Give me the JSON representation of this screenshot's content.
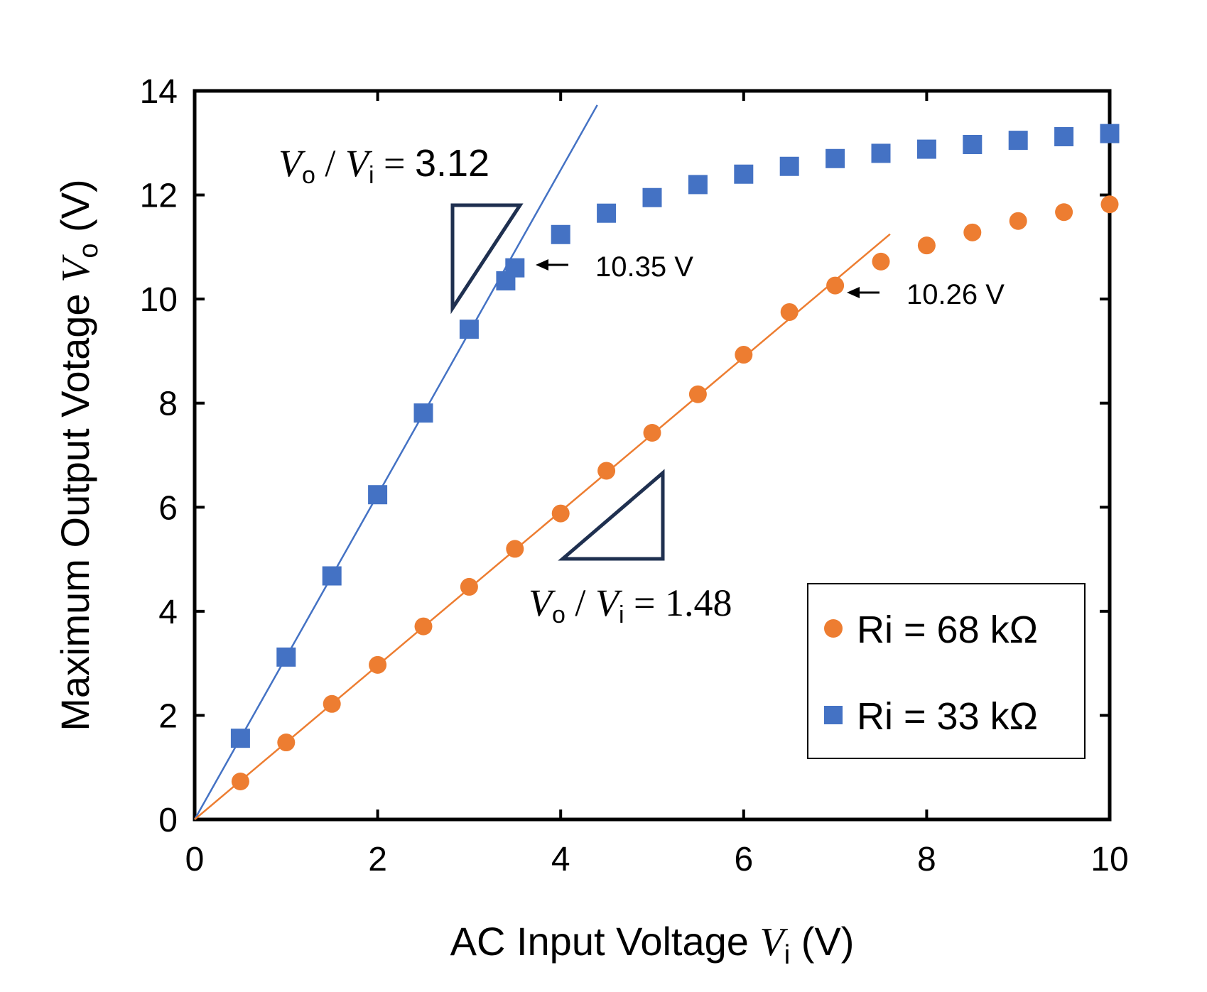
{
  "chart_data": {
    "type": "scatter",
    "x_label": {
      "prefix": "AC Input Voltage ",
      "var": "V",
      "sub": "i",
      "suffix": " (V)"
    },
    "y_label": {
      "prefix": "Maximum Output Votage ",
      "var": "V",
      "sub": "o",
      "suffix": " (V)"
    },
    "xlim": [
      0,
      10
    ],
    "ylim": [
      0,
      14
    ],
    "x_ticks": [
      0,
      2,
      4,
      6,
      8,
      10
    ],
    "y_ticks": [
      0,
      2,
      4,
      6,
      8,
      10,
      12,
      14
    ],
    "grid": false,
    "legend_position": "bottom-right",
    "series": [
      {
        "name": "Ri = 68 kΩ",
        "marker": "circle",
        "color": "#ED7D31",
        "x": [
          0.5,
          1.0,
          1.5,
          2.0,
          2.5,
          3.0,
          3.5,
          4.0,
          4.5,
          5.0,
          5.5,
          6.0,
          6.5,
          7.0,
          7.5,
          8.0,
          8.5,
          9.0,
          9.5,
          10.0
        ],
        "y": [
          0.73,
          1.48,
          2.22,
          2.97,
          3.71,
          4.47,
          5.2,
          5.88,
          6.7,
          7.43,
          8.17,
          8.93,
          9.75,
          10.26,
          10.72,
          11.03,
          11.28,
          11.5,
          11.67,
          11.82
        ]
      },
      {
        "name": "Ri = 33 kΩ",
        "marker": "square",
        "color": "#4472C4",
        "x": [
          0.5,
          1.0,
          1.5,
          2.0,
          2.5,
          3.0,
          3.4,
          3.5,
          4.0,
          4.5,
          5.0,
          5.5,
          6.0,
          6.5,
          7.0,
          7.5,
          8.0,
          8.5,
          9.0,
          9.5,
          10.0
        ],
        "y": [
          1.56,
          3.12,
          4.68,
          6.24,
          7.81,
          9.42,
          10.35,
          10.6,
          11.24,
          11.65,
          11.95,
          12.2,
          12.4,
          12.55,
          12.7,
          12.8,
          12.88,
          12.97,
          13.05,
          13.12,
          13.18
        ]
      }
    ],
    "fit_lines": [
      {
        "color": "#4472C4",
        "slope": 3.12,
        "x_range": [
          0,
          4.4
        ]
      },
      {
        "color": "#ED7D31",
        "slope": 1.48,
        "x_range": [
          0,
          7.6
        ]
      }
    ],
    "annotations": [
      {
        "text": "10.35 V",
        "points_to": [
          3.5,
          10.35
        ]
      },
      {
        "text": "10.26 V",
        "points_to": [
          7.0,
          10.26
        ]
      }
    ],
    "slope_labels": [
      {
        "num_var": "V",
        "num_sub": "o",
        "den_var": "V",
        "den_sub": "i",
        "value": "3.12"
      },
      {
        "num_var": "V",
        "num_sub": "o",
        "den_var": "V",
        "den_sub": "i",
        "value": "1.48"
      }
    ]
  }
}
